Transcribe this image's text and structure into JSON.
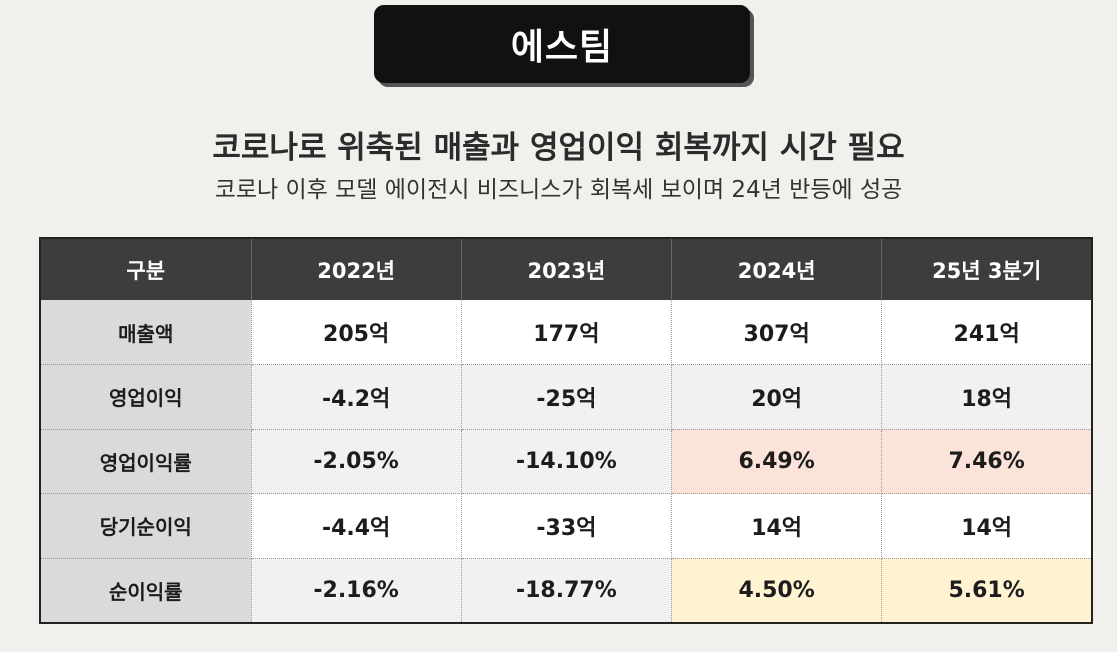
{
  "badge": {
    "label": "에스팀"
  },
  "heading": {
    "title": "코로나로 위축된 매출과 영업이익 회복까지 시간 필요",
    "subtitle": "코로나 이후 모델 에이전시 비즈니스가 회복세 보이며 24년 반등에 성공"
  },
  "colors": {
    "background": "#f2f0ec",
    "header": "#3d3d3d",
    "label_column": "#dadada",
    "highlight_operating_margin": "#fbe3d9",
    "highlight_net_margin": "#fff3d1"
  },
  "table": {
    "headers": [
      "구분",
      "2022년",
      "2023년",
      "2024년",
      "25년 3분기"
    ],
    "rows": [
      {
        "label": "매출액",
        "values": [
          "205억",
          "177억",
          "307억",
          "241억"
        ]
      },
      {
        "label": "영업이익",
        "values": [
          "-4.2억",
          "-25억",
          "20억",
          "18억"
        ]
      },
      {
        "label": "영업이익률",
        "values": [
          "-2.05%",
          "-14.10%",
          "6.49%",
          "7.46%"
        ]
      },
      {
        "label": "당기순이익",
        "values": [
          "-4.4억",
          "-33억",
          "14억",
          "14억"
        ]
      },
      {
        "label": "순이익률",
        "values": [
          "-2.16%",
          "-18.77%",
          "4.50%",
          "5.61%"
        ]
      }
    ]
  }
}
